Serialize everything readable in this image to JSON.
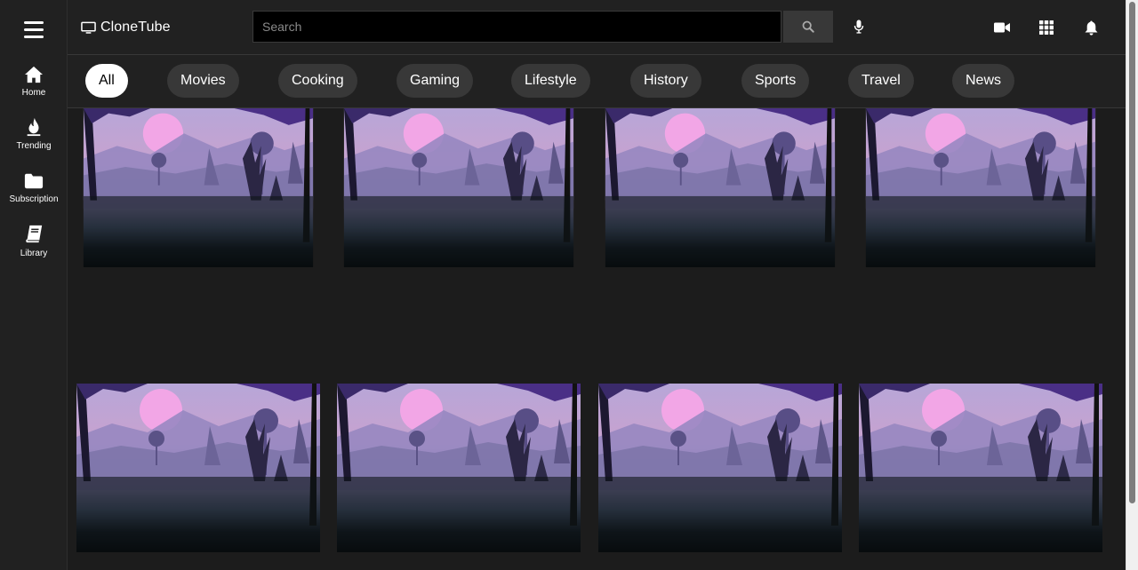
{
  "brand": {
    "name": "CloneTube"
  },
  "sidebar": {
    "items": [
      {
        "label": "Home"
      },
      {
        "label": "Trending"
      },
      {
        "label": "Subscription"
      },
      {
        "label": "Library"
      }
    ]
  },
  "search": {
    "placeholder": "Search",
    "value": ""
  },
  "chips": [
    "All",
    "Movies",
    "Cooking",
    "Gaming",
    "Lifestyle",
    "History",
    "Sports",
    "Travel",
    "News"
  ],
  "active_chip": "All",
  "colors": {
    "background": "#202020",
    "surface": "#212121",
    "chip": "#383838",
    "chip_active": "#ffffff"
  }
}
